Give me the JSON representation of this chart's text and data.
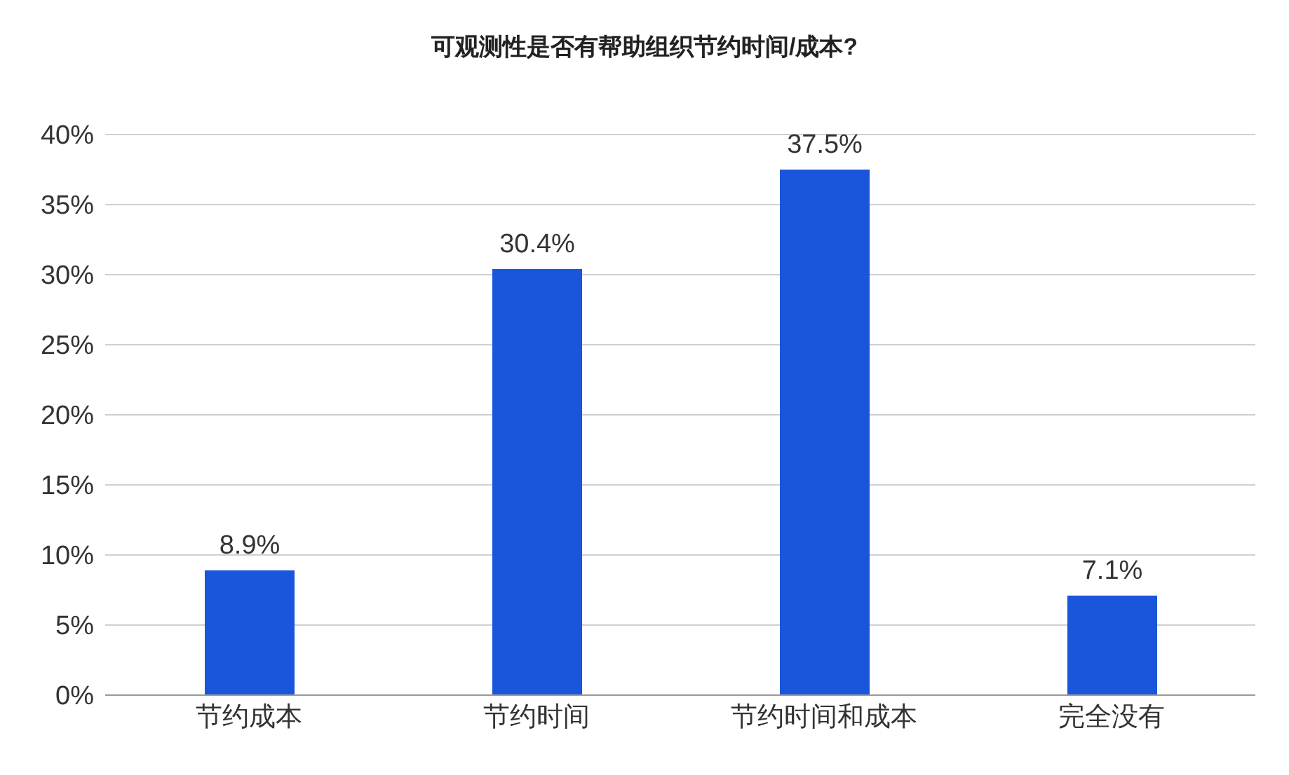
{
  "chart_data": {
    "type": "bar",
    "title": "可观测性是否有帮助组织节约时间/成本?",
    "categories": [
      "节约成本",
      "节约时间",
      "节约时间和成本",
      "完全没有"
    ],
    "values": [
      8.9,
      30.4,
      37.5,
      7.1
    ],
    "value_labels": [
      "8.9%",
      "30.4%",
      "37.5%",
      "7.1%"
    ],
    "color": "#1a56db",
    "ylim": [
      0,
      40
    ],
    "yticks": [
      {
        "value": 0,
        "label": "0%"
      },
      {
        "value": 5,
        "label": "5%"
      },
      {
        "value": 10,
        "label": "10%"
      },
      {
        "value": 15,
        "label": "15%"
      },
      {
        "value": 20,
        "label": "20%"
      },
      {
        "value": 25,
        "label": "25%"
      },
      {
        "value": 30,
        "label": "30%"
      },
      {
        "value": 35,
        "label": "35%"
      },
      {
        "value": 40,
        "label": "40%"
      }
    ],
    "grid": "y",
    "legend": false
  }
}
